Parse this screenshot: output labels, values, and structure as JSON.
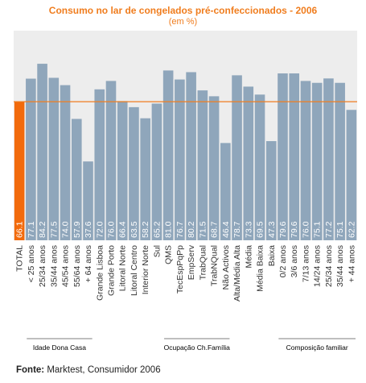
{
  "chart_data": {
    "type": "bar",
    "title": "Consumo no lar de congelados pré-confeccionados - 2006",
    "subtitle": "(em %)",
    "categories": [
      "TOTAL",
      "< 25 anos",
      "25/34 anos",
      "35/44 anos",
      "45/54 anos",
      "55/64 anos",
      "+ 64 anos",
      "Grande Lisboa",
      "Grande Porto",
      "Litoral Norte",
      "Litoral Centro",
      "Interior Norte",
      "Sul",
      "QMS",
      "TecEspPqPp",
      "EmpServ",
      "TrabQual",
      "TrabNQual",
      "Não Activos",
      "Alta/Média Alta",
      "Média",
      "Média Baixa",
      "Baixa",
      "0/2 anos",
      "3/6 anos",
      "7/13 anos",
      "14/24 anos",
      "25/34 anos",
      "35/44 anos",
      "+ 44 anos"
    ],
    "values": [
      66.1,
      77.1,
      84.2,
      77.5,
      74.0,
      57.9,
      37.6,
      72.0,
      76.0,
      66.4,
      63.5,
      58.2,
      65.2,
      81.0,
      76.7,
      80.2,
      71.5,
      68.7,
      46.4,
      78.7,
      73.3,
      69.5,
      47.3,
      79.6,
      79.6,
      76.0,
      75.1,
      77.2,
      75.1,
      62.2
    ],
    "labels": [
      "66.1",
      "77.1",
      "84.2",
      "77.5",
      "74.0",
      "57.9",
      "37.6",
      "72.0",
      "76.0",
      "66.4",
      "63.5",
      "58.2",
      "65.2",
      "81.0",
      "76.7",
      "80.2",
      "71.5",
      "68.7",
      "46.4",
      "78.7",
      "73.3",
      "69.5",
      "47.3",
      "79.6",
      "79.6",
      "76.0",
      "75.1",
      "77.2",
      "75.1",
      "62.2"
    ],
    "ylim": [
      0,
      100
    ],
    "reference_line": 66.1,
    "highlight_index": 0,
    "colors": {
      "bar": "#8fa6bb",
      "highlight": "#f26a0c",
      "reference": "#f07d1e",
      "plot_bg": "#ededed",
      "bar_label": "#ffffff",
      "tick": "#333333"
    },
    "groups": [
      {
        "label": "Idade Dona Casa",
        "start": 1,
        "end": 6
      },
      {
        "label": "Ocupação Ch.Família",
        "start": 13,
        "end": 18
      },
      {
        "label": "Composição familiar",
        "start": 23,
        "end": 29
      }
    ]
  },
  "source": {
    "prefix": "Fonte:",
    "text": " Marktest, Consumidor 2006"
  }
}
